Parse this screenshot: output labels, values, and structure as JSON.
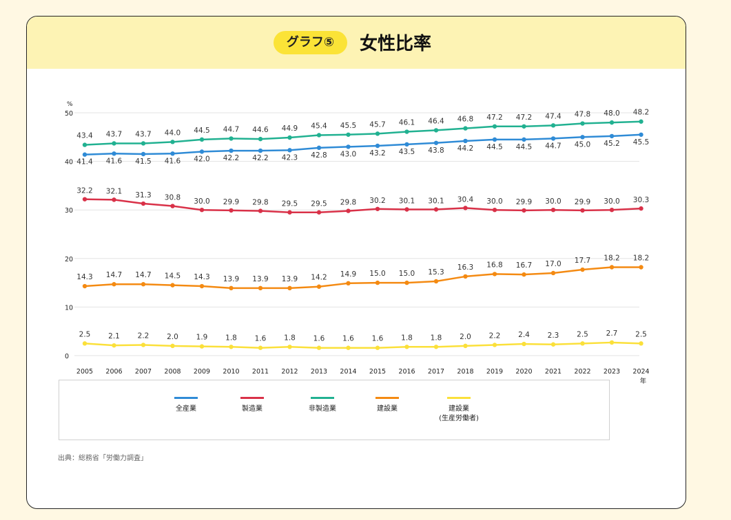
{
  "header": {
    "badge": "グラフ⑤",
    "title": "女性比率"
  },
  "source": "出典：総務省「労働力調査」",
  "legend": [
    {
      "label": "全産業",
      "sub": "",
      "color": "#2f8bd6"
    },
    {
      "label": "製造業",
      "sub": "",
      "color": "#d93148"
    },
    {
      "label": "非製造業",
      "sub": "",
      "color": "#21b191"
    },
    {
      "label": "建設業",
      "sub": "",
      "color": "#f48a12"
    },
    {
      "label": "建設業",
      "sub": "(生産労働者)",
      "color": "#fbe03a"
    }
  ],
  "chart_data": {
    "type": "line",
    "title": "女性比率",
    "ylabel": "%",
    "xlabel": "年",
    "ylim": [
      0,
      50
    ],
    "yticks": [
      "0",
      "10",
      "20",
      "30",
      "40",
      "50"
    ],
    "grid": true,
    "legend_position": "bottom",
    "categories": [
      "2005",
      "2006",
      "2007",
      "2008",
      "2009",
      "2010",
      "2011",
      "2012",
      "2013",
      "2014",
      "2015",
      "2016",
      "2017",
      "2018",
      "2019",
      "2020",
      "2021",
      "2022",
      "2023",
      "2024"
    ],
    "series": [
      {
        "name": "全産業",
        "color": "#2f8bd6",
        "values": [
          41.4,
          41.6,
          41.5,
          41.6,
          42.0,
          42.2,
          42.2,
          42.3,
          42.8,
          43.0,
          43.2,
          43.5,
          43.8,
          44.2,
          44.5,
          44.5,
          44.7,
          45.0,
          45.2,
          45.5
        ],
        "labels": [
          "41.4",
          "41.6",
          "41.5",
          "41.6",
          "42.0",
          "42.2",
          "42.2",
          "42.3",
          "42.8",
          "43.0",
          "43.2",
          "43.5",
          "43.8",
          "44.2",
          "44.5",
          "44.5",
          "44.7",
          "45.0",
          "45.2",
          "45.5"
        ]
      },
      {
        "name": "製造業",
        "color": "#d93148",
        "values": [
          32.2,
          32.1,
          31.3,
          30.8,
          30.0,
          29.9,
          29.8,
          29.5,
          29.5,
          29.8,
          30.2,
          30.1,
          30.1,
          30.4,
          30.0,
          29.9,
          30.0,
          29.9,
          30.0,
          30.3
        ],
        "labels": [
          "32.2",
          "32.1",
          "31.3",
          "30.8",
          "30.0",
          "29.9",
          "29.8",
          "29.5",
          "29.5",
          "29.8",
          "30.2",
          "30.1",
          "30.1",
          "30.4",
          "30.0",
          "29.9",
          "30.0",
          "29.9",
          "30.0",
          "30.3"
        ]
      },
      {
        "name": "非製造業",
        "color": "#21b191",
        "values": [
          43.4,
          43.7,
          43.7,
          44.0,
          44.5,
          44.7,
          44.6,
          44.9,
          45.4,
          45.5,
          45.7,
          46.1,
          46.4,
          46.8,
          47.2,
          47.2,
          47.4,
          47.8,
          48.0,
          48.2
        ],
        "labels": [
          "43.4",
          "43.7",
          "43.7",
          "44.0",
          "44.5",
          "44.7",
          "44.6",
          "44.9",
          "45.4",
          "45.5",
          "45.7",
          "46.1",
          "46.4",
          "46.8",
          "47.2",
          "47.2",
          "47.4",
          "47.8",
          "48.0",
          "48.2"
        ]
      },
      {
        "name": "建設業",
        "color": "#f48a12",
        "values": [
          14.3,
          14.7,
          14.7,
          14.5,
          14.3,
          13.9,
          13.9,
          13.9,
          14.2,
          14.9,
          15.0,
          15.0,
          15.3,
          16.3,
          16.8,
          16.7,
          17.0,
          17.7,
          18.2,
          18.2
        ],
        "labels": [
          "14.3",
          "14.7",
          "14.7",
          "14.5",
          "14.3",
          "13.9",
          "13.9",
          "13.9",
          "14.2",
          "14.9",
          "15.0",
          "15.0",
          "15.3",
          "16.3",
          "16.8",
          "16.7",
          "17.0",
          "17.7",
          "18.2",
          "18.2"
        ]
      },
      {
        "name": "建設業(生産労働者)",
        "color": "#fbe03a",
        "values": [
          2.5,
          2.1,
          2.2,
          2.0,
          1.9,
          1.8,
          1.6,
          1.8,
          1.6,
          1.6,
          1.6,
          1.8,
          1.8,
          2.0,
          2.2,
          2.4,
          2.3,
          2.5,
          2.7,
          2.5
        ],
        "labels": [
          "2.5",
          "2.1",
          "2.2",
          "2.0",
          "1.9",
          "1.8",
          "1.6",
          "1.8",
          "1.6",
          "1.6",
          "1.6",
          "1.8",
          "1.8",
          "2.0",
          "2.2",
          "2.4",
          "2.3",
          "2.5",
          "2.7",
          "2.5"
        ]
      }
    ]
  }
}
